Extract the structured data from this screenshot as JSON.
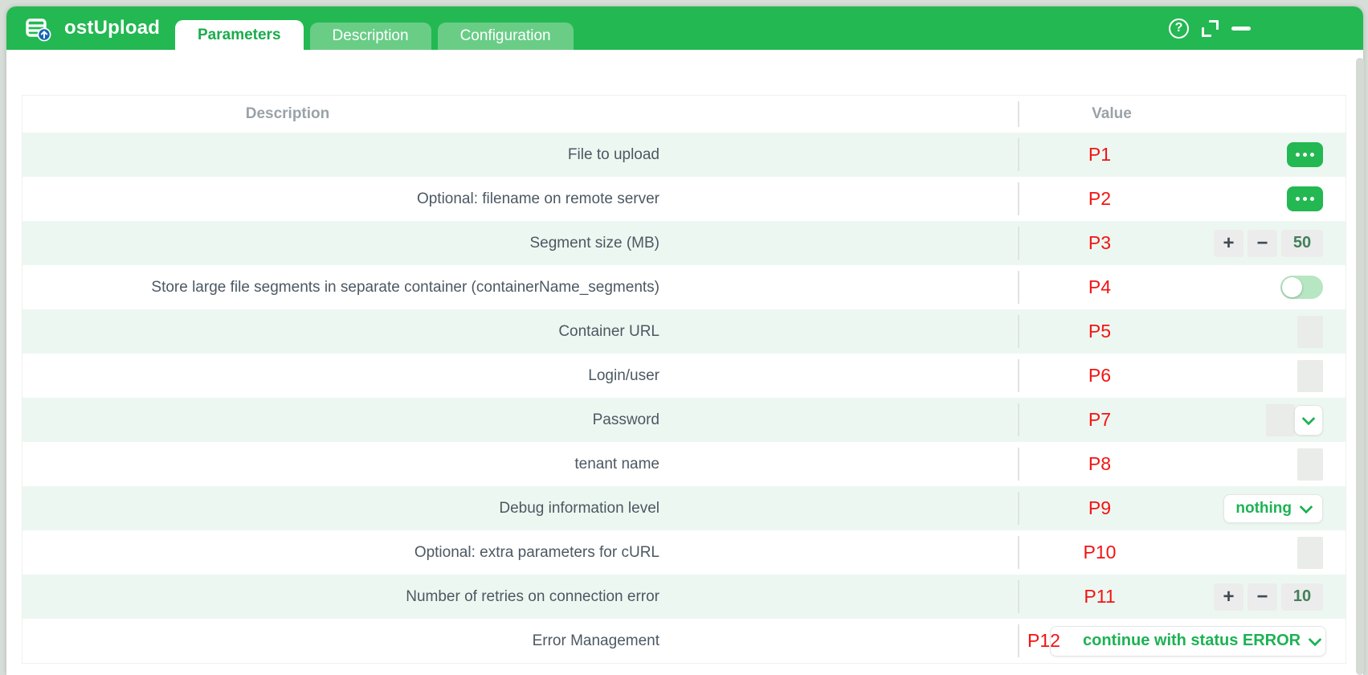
{
  "titlebar": {
    "title": "ostUpload",
    "help_glyph": "?",
    "tabs": [
      {
        "label": "Parameters",
        "active": true
      },
      {
        "label": "Description",
        "active": false
      },
      {
        "label": "Configuration",
        "active": false
      }
    ]
  },
  "table": {
    "columns": {
      "description": "Description",
      "value": "Value"
    },
    "stepper": {
      "plus": "+",
      "minus": "−"
    },
    "rows": [
      {
        "description": "File to upload",
        "param": "P1",
        "control": "ellipsis"
      },
      {
        "description": "Optional: filename on remote server",
        "param": "P2",
        "control": "ellipsis"
      },
      {
        "description": "Segment size (MB)",
        "param": "P3",
        "control": "stepper",
        "value": "50"
      },
      {
        "description": "Store large file segments in separate container (containerName_segments)",
        "param": "P4",
        "control": "toggle",
        "state": "off"
      },
      {
        "description": "Container URL",
        "param": "P5",
        "control": "input"
      },
      {
        "description": "Login/user",
        "param": "P6",
        "control": "input"
      },
      {
        "description": "Password",
        "param": "P7",
        "control": "input-dropdown"
      },
      {
        "description": "tenant name",
        "param": "P8",
        "control": "input"
      },
      {
        "description": "Debug information level",
        "param": "P9",
        "control": "select",
        "value": "nothing"
      },
      {
        "description": "Optional: extra parameters for cURL",
        "param": "P10",
        "control": "input"
      },
      {
        "description": "Number of retries on connection error",
        "param": "P11",
        "control": "stepper",
        "value": "10"
      },
      {
        "description": "Error Management",
        "param": "P12",
        "control": "select-wide",
        "value": "continue with status ERROR"
      }
    ]
  },
  "colors": {
    "header_green": "#23b852",
    "inactive_tab_green": "#69cd86",
    "active_tab_text": "#19ac4b",
    "row_alt_green": "#edf7f1",
    "param_red": "#f21313",
    "description_text": "#4c5862",
    "column_header_text": "#9aa2a8",
    "toggle_track": "#b7e6c3",
    "select_text_green": "#1db254"
  }
}
